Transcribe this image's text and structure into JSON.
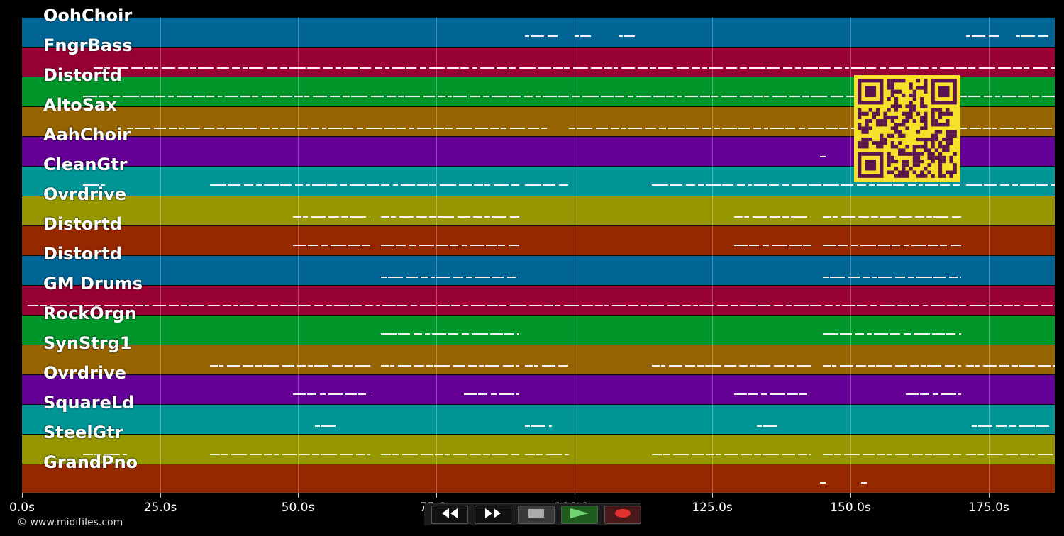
{
  "tracks": [
    {
      "name": "OohChoir",
      "color": "#006494"
    },
    {
      "name": "FngrBass",
      "color": "#960034"
    },
    {
      "name": "Distortd",
      "color": "#00962a"
    },
    {
      "name": "AltoSax",
      "color": "#966400"
    },
    {
      "name": "AahChoir",
      "color": "#640096"
    },
    {
      "name": "CleanGtr",
      "color": "#009696"
    },
    {
      "name": "Ovrdrive",
      "color": "#969600"
    },
    {
      "name": "Distortd",
      "color": "#962800"
    },
    {
      "name": "Distortd",
      "color": "#006494"
    },
    {
      "name": "GM Drums",
      "color": "#960034"
    },
    {
      "name": "RockOrgn",
      "color": "#00962a"
    },
    {
      "name": "SynStrg1",
      "color": "#966400"
    },
    {
      "name": "Ovrdrive",
      "color": "#640096"
    },
    {
      "name": "SquareLd",
      "color": "#009696"
    },
    {
      "name": "SteelGtr",
      "color": "#969600"
    },
    {
      "name": "GrandPno",
      "color": "#962800"
    }
  ],
  "timeline": {
    "max_seconds": 187,
    "ticks": [
      "0.0s",
      "25.0s",
      "50.0s",
      "75.0s",
      "100.0s",
      "125.0s",
      "150.0s",
      "175.0s"
    ],
    "tick_values": [
      0,
      25,
      50,
      75,
      100,
      125,
      150,
      175
    ]
  },
  "notes": [
    [
      [
        91,
        97
      ],
      [
        100,
        103
      ],
      [
        108,
        111
      ],
      [
        171,
        177
      ],
      [
        180,
        186
      ]
    ],
    [
      [
        13,
        187
      ]
    ],
    [
      [
        11,
        187
      ]
    ],
    [
      [
        19,
        95
      ],
      [
        99,
        187
      ]
    ],
    [
      [
        144.5,
        145.5
      ]
    ],
    [
      [
        11,
        15
      ],
      [
        34,
        90
      ],
      [
        91,
        99
      ],
      [
        114,
        145
      ],
      [
        145,
        170
      ],
      [
        171,
        187
      ]
    ],
    [
      [
        49,
        63
      ],
      [
        65,
        90
      ],
      [
        129,
        143
      ],
      [
        145,
        170
      ]
    ],
    [
      [
        49,
        63
      ],
      [
        65,
        90
      ],
      [
        129,
        143
      ],
      [
        145,
        170
      ]
    ],
    [
      [
        65,
        90
      ],
      [
        145,
        170
      ]
    ],
    [
      [
        1,
        187
      ]
    ],
    [
      [
        65,
        90
      ],
      [
        145,
        170
      ]
    ],
    [
      [
        34,
        63
      ],
      [
        65,
        90
      ],
      [
        91,
        99
      ],
      [
        114,
        143
      ],
      [
        145,
        170
      ],
      [
        171,
        187
      ]
    ],
    [
      [
        49,
        63
      ],
      [
        80,
        90
      ],
      [
        129,
        143
      ],
      [
        160,
        170
      ]
    ],
    [
      [
        53,
        57
      ],
      [
        91,
        96
      ],
      [
        133,
        137
      ],
      [
        172,
        186
      ]
    ],
    [
      [
        11,
        19
      ],
      [
        34,
        63
      ],
      [
        65,
        90
      ],
      [
        91,
        99
      ],
      [
        114,
        143
      ],
      [
        145,
        170
      ],
      [
        171,
        187
      ]
    ],
    [
      [
        144.5,
        145.5
      ],
      [
        152,
        153
      ]
    ]
  ],
  "copyright": "© www.midifiles.com",
  "transport": {
    "rewind": "rewind-icon",
    "fast_forward": "fast-forward-icon",
    "stop": "stop-icon",
    "play": "play-icon",
    "record": "record-icon"
  }
}
